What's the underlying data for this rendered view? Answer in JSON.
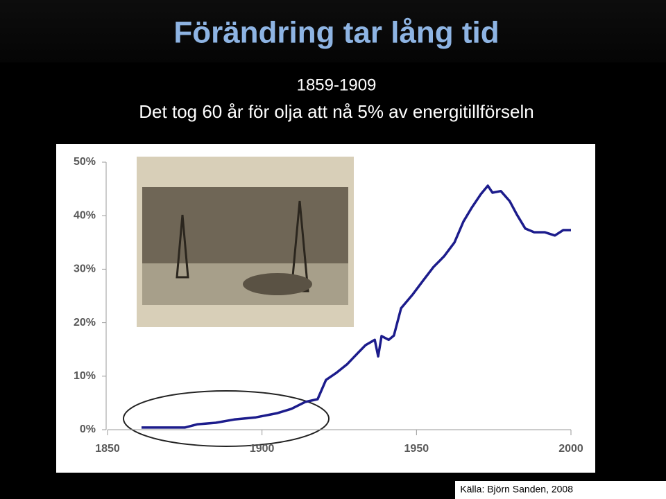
{
  "chart_data": {
    "type": "line",
    "title": "Förändring tar lång tid",
    "subtitle": "1859-1909",
    "annotation": "Det tog 60 år för olja att nå 5% av energitillförseln",
    "source": "Källa: Björn Sanden, 2008",
    "color": "#1c1c8c",
    "x": [
      1861,
      1875,
      1879,
      1885,
      1891,
      1898,
      1905,
      1909.5,
      1914,
      1918,
      1920.7,
      1924,
      1927.5,
      1930.8,
      1933.5,
      1936.5,
      1937.6,
      1938.7,
      1941,
      1942.7,
      1945,
      1948.8,
      1952.2,
      1955.5,
      1958.9,
      1962.3,
      1965.2,
      1967.9,
      1970.8,
      1973.1,
      1974.6,
      1977.3,
      1980.2,
      1982.5,
      1985.2,
      1988.1,
      1991.5,
      1994.8,
      1997.5,
      2000
    ],
    "values": [
      0.4,
      0.4,
      1.0,
      1.3,
      1.9,
      2.3,
      3.1,
      3.9,
      5.2,
      5.7,
      9.3,
      10.6,
      12.2,
      14.2,
      15.8,
      16.8,
      13.7,
      17.5,
      16.8,
      17.6,
      22.7,
      25.3,
      27.9,
      30.4,
      32.4,
      35.0,
      38.9,
      41.5,
      44.0,
      45.6,
      44.3,
      44.6,
      42.7,
      40.2,
      37.6,
      36.9,
      36.9,
      36.3,
      37.3,
      37.3
    ],
    "xlim": [
      1850,
      2000
    ],
    "xticks": [
      1850,
      1900,
      1950,
      2000
    ],
    "ylim": [
      0,
      50
    ],
    "yticks": [
      {
        "value": 0,
        "label": "0%"
      },
      {
        "value": 10,
        "label": "10%"
      },
      {
        "value": 20,
        "label": "20%"
      },
      {
        "value": 30,
        "label": "30%"
      },
      {
        "value": 40,
        "label": "40%"
      },
      {
        "value": 50,
        "label": "50%"
      }
    ]
  }
}
